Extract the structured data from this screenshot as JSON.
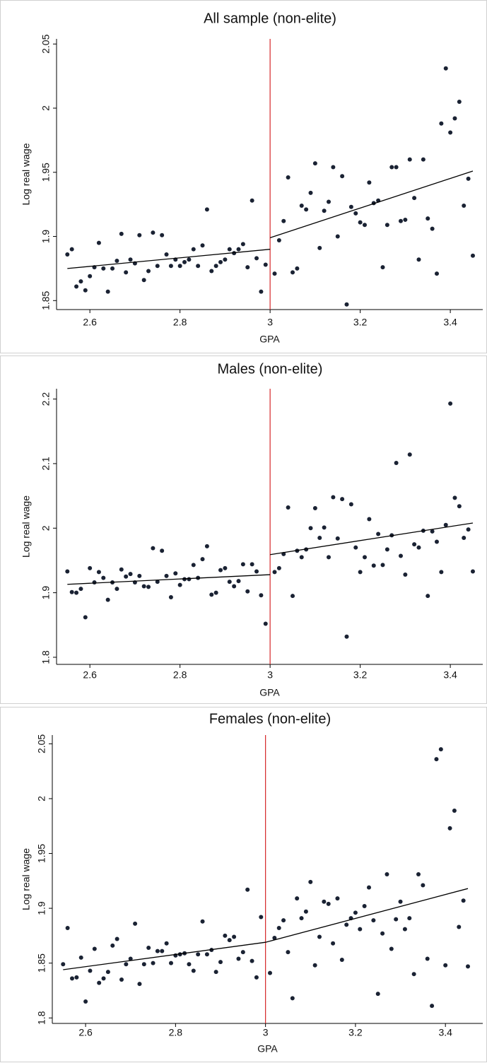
{
  "chart_data": [
    {
      "type": "scatter",
      "title": "All sample (non-elite)",
      "x_label": "GPA",
      "y_label": "Log real wage",
      "color": "#1a2233",
      "cutoff": 3,
      "cutoff_color": "#d62728",
      "fit_color": "#000000",
      "xlim": [
        2.526,
        3.472
      ],
      "ylim": [
        1.843,
        2.054
      ],
      "xticks": [
        2.6,
        2.8,
        3,
        3.2,
        3.4
      ],
      "yticks": [
        1.85,
        1.9,
        1.95,
        2,
        2.05
      ],
      "fit": [
        {
          "x": [
            2.55,
            3
          ],
          "values": [
            1.875,
            1.89
          ]
        },
        {
          "x": [
            3,
            3.45
          ],
          "values": [
            1.899,
            1.951
          ]
        }
      ],
      "x": [
        2.55,
        2.56,
        2.57,
        2.58,
        2.59,
        2.6,
        2.61,
        2.62,
        2.63,
        2.64,
        2.65,
        2.66,
        2.67,
        2.68,
        2.69,
        2.7,
        2.71,
        2.72,
        2.73,
        2.74,
        2.75,
        2.76,
        2.77,
        2.78,
        2.79,
        2.8,
        2.81,
        2.82,
        2.83,
        2.84,
        2.85,
        2.86,
        2.87,
        2.88,
        2.89,
        2.9,
        2.91,
        2.92,
        2.93,
        2.94,
        2.95,
        2.96,
        2.97,
        2.98,
        2.99,
        3.01,
        3.02,
        3.03,
        3.04,
        3.05,
        3.06,
        3.07,
        3.08,
        3.09,
        3.1,
        3.11,
        3.12,
        3.13,
        3.14,
        3.15,
        3.16,
        3.17,
        3.18,
        3.19,
        3.2,
        3.21,
        3.22,
        3.23,
        3.24,
        3.25,
        3.26,
        3.27,
        3.28,
        3.29,
        3.3,
        3.31,
        3.32,
        3.33,
        3.34,
        3.35,
        3.36,
        3.37,
        3.38,
        3.39,
        3.4,
        3.41,
        3.42,
        3.43,
        3.44,
        3.45
      ],
      "values": [
        1.886,
        1.89,
        1.861,
        1.865,
        1.858,
        1.869,
        1.876,
        1.895,
        1.875,
        1.857,
        1.875,
        1.881,
        1.902,
        1.872,
        1.882,
        1.879,
        1.901,
        1.866,
        1.873,
        1.903,
        1.877,
        1.901,
        1.886,
        1.877,
        1.882,
        1.877,
        1.88,
        1.882,
        1.89,
        1.877,
        1.893,
        1.921,
        1.873,
        1.877,
        1.88,
        1.882,
        1.89,
        1.887,
        1.89,
        1.894,
        1.876,
        1.928,
        1.883,
        1.857,
        1.878,
        1.871,
        1.897,
        1.912,
        1.946,
        1.872,
        1.875,
        1.924,
        1.921,
        1.934,
        1.957,
        1.891,
        1.92,
        1.927,
        1.954,
        1.9,
        1.947,
        1.847,
        1.923,
        1.918,
        1.911,
        1.909,
        1.942,
        1.926,
        1.928,
        1.876,
        1.909,
        1.954,
        1.954,
        1.912,
        1.913,
        1.96,
        1.93,
        1.882,
        1.96,
        1.914,
        1.906,
        1.871,
        1.988,
        2.031,
        1.981,
        1.992,
        2.005,
        1.924,
        1.945,
        1.885
      ]
    },
    {
      "type": "scatter",
      "title": "Males (non-elite)",
      "x_label": "GPA",
      "y_label": "Log real wage",
      "color": "#1a2233",
      "cutoff": 3,
      "cutoff_color": "#d62728",
      "fit_color": "#000000",
      "xlim": [
        2.526,
        3.472
      ],
      "ylim": [
        1.789,
        2.216
      ],
      "xticks": [
        2.6,
        2.8,
        3,
        3.2,
        3.4
      ],
      "yticks": [
        1.8,
        1.9,
        2,
        2.1,
        2.2
      ],
      "fit": [
        {
          "x": [
            2.55,
            3
          ],
          "values": [
            1.913,
            1.928
          ]
        },
        {
          "x": [
            3,
            3.45
          ],
          "values": [
            1.959,
            2.008
          ]
        }
      ],
      "x": [
        2.55,
        2.56,
        2.57,
        2.58,
        2.59,
        2.6,
        2.61,
        2.62,
        2.63,
        2.64,
        2.65,
        2.66,
        2.67,
        2.68,
        2.69,
        2.7,
        2.71,
        2.72,
        2.73,
        2.74,
        2.75,
        2.76,
        2.77,
        2.78,
        2.79,
        2.8,
        2.81,
        2.82,
        2.83,
        2.84,
        2.85,
        2.86,
        2.87,
        2.88,
        2.89,
        2.9,
        2.91,
        2.92,
        2.93,
        2.94,
        2.95,
        2.96,
        2.97,
        2.98,
        2.99,
        3.01,
        3.02,
        3.03,
        3.04,
        3.05,
        3.06,
        3.07,
        3.08,
        3.09,
        3.1,
        3.11,
        3.12,
        3.13,
        3.14,
        3.15,
        3.16,
        3.17,
        3.18,
        3.19,
        3.2,
        3.21,
        3.22,
        3.23,
        3.24,
        3.25,
        3.26,
        3.27,
        3.28,
        3.29,
        3.3,
        3.31,
        3.32,
        3.33,
        3.34,
        3.35,
        3.36,
        3.37,
        3.38,
        3.39,
        3.4,
        3.41,
        3.42,
        3.43,
        3.44,
        3.45
      ],
      "values": [
        1.933,
        1.901,
        1.9,
        1.906,
        1.862,
        1.938,
        1.916,
        1.932,
        1.923,
        1.889,
        1.916,
        1.906,
        1.936,
        1.925,
        1.929,
        1.916,
        1.926,
        1.91,
        1.909,
        1.969,
        1.917,
        1.965,
        1.926,
        1.893,
        1.93,
        1.912,
        1.921,
        1.921,
        1.943,
        1.923,
        1.952,
        1.972,
        1.897,
        1.9,
        1.935,
        1.938,
        1.917,
        1.91,
        1.918,
        1.944,
        1.902,
        1.944,
        1.933,
        1.896,
        1.852,
        1.932,
        1.938,
        1.96,
        2.032,
        1.895,
        1.965,
        1.955,
        1.967,
        2,
        2.031,
        1.985,
        2.001,
        1.955,
        2.048,
        1.984,
        2.045,
        1.832,
        2.037,
        1.97,
        1.932,
        1.955,
        2.014,
        1.942,
        1.991,
        1.943,
        1.967,
        1.989,
        2.101,
        1.957,
        1.928,
        2.114,
        1.975,
        1.97,
        1.996,
        1.895,
        1.995,
        1.979,
        1.932,
        2.005,
        2.193,
        2.047,
        2.034,
        1.985,
        1.998,
        1.933
      ]
    },
    {
      "type": "scatter",
      "title": "Females (non-elite)",
      "x_label": "GPA",
      "y_label": "Log real wage",
      "color": "#1a2233",
      "cutoff": 3,
      "cutoff_color": "#d62728",
      "fit_color": "#000000",
      "xlim": [
        2.526,
        3.483
      ],
      "ylim": [
        1.795,
        2.058
      ],
      "xticks": [
        2.6,
        2.8,
        3,
        3.2,
        3.4
      ],
      "yticks": [
        1.8,
        1.85,
        1.9,
        1.95,
        2,
        2.05
      ],
      "fit": [
        {
          "x": [
            2.55,
            3
          ],
          "values": [
            1.844,
            1.869
          ]
        },
        {
          "x": [
            3,
            3.45
          ],
          "values": [
            1.869,
            1.918
          ]
        }
      ],
      "x": [
        2.55,
        2.56,
        2.57,
        2.58,
        2.59,
        2.6,
        2.61,
        2.62,
        2.63,
        2.64,
        2.65,
        2.66,
        2.67,
        2.68,
        2.69,
        2.7,
        2.71,
        2.72,
        2.73,
        2.74,
        2.75,
        2.76,
        2.77,
        2.78,
        2.79,
        2.8,
        2.81,
        2.82,
        2.83,
        2.84,
        2.85,
        2.86,
        2.87,
        2.88,
        2.89,
        2.9,
        2.91,
        2.92,
        2.93,
        2.94,
        2.95,
        2.96,
        2.97,
        2.98,
        2.99,
        3.01,
        3.02,
        3.03,
        3.04,
        3.05,
        3.06,
        3.07,
        3.08,
        3.09,
        3.1,
        3.11,
        3.12,
        3.13,
        3.14,
        3.15,
        3.16,
        3.17,
        3.18,
        3.19,
        3.2,
        3.21,
        3.22,
        3.23,
        3.24,
        3.25,
        3.26,
        3.27,
        3.28,
        3.29,
        3.3,
        3.31,
        3.32,
        3.33,
        3.34,
        3.35,
        3.36,
        3.37,
        3.38,
        3.39,
        3.4,
        3.41,
        3.42,
        3.43,
        3.44,
        3.45
      ],
      "values": [
        1.849,
        1.882,
        1.836,
        1.837,
        1.855,
        1.815,
        1.843,
        1.863,
        1.832,
        1.836,
        1.842,
        1.866,
        1.872,
        1.835,
        1.849,
        1.854,
        1.886,
        1.831,
        1.849,
        1.864,
        1.85,
        1.861,
        1.861,
        1.868,
        1.85,
        1.857,
        1.858,
        1.859,
        1.849,
        1.843,
        1.858,
        1.888,
        1.858,
        1.862,
        1.842,
        1.851,
        1.875,
        1.871,
        1.874,
        1.854,
        1.86,
        1.917,
        1.852,
        1.837,
        1.892,
        1.841,
        1.873,
        1.882,
        1.889,
        1.86,
        1.818,
        1.909,
        1.891,
        1.897,
        1.924,
        1.848,
        1.874,
        1.906,
        1.904,
        1.868,
        1.909,
        1.853,
        1.885,
        1.891,
        1.896,
        1.881,
        1.902,
        1.919,
        1.889,
        1.822,
        1.877,
        1.931,
        1.863,
        1.89,
        1.906,
        1.881,
        1.891,
        1.84,
        1.931,
        1.921,
        1.854,
        1.811,
        2.036,
        2.045,
        1.848,
        1.973,
        1.989,
        1.883,
        1.907,
        1.847
      ]
    }
  ]
}
